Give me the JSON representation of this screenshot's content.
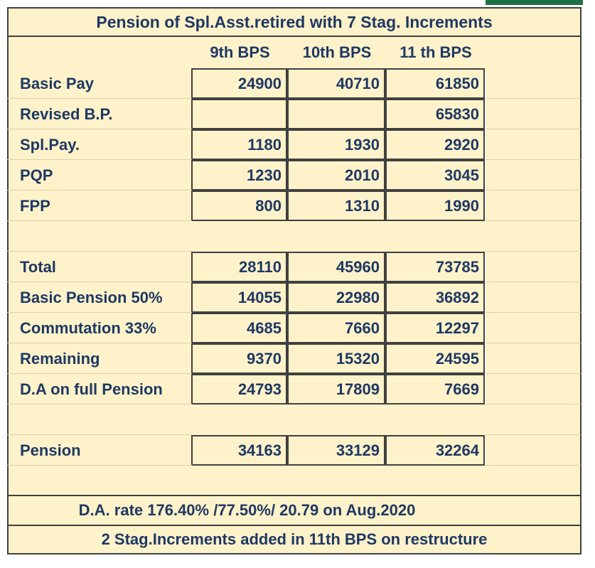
{
  "title": "Pension of Spl.Asst.retired with 7 Stag. Increments",
  "columns": [
    "9th BPS",
    "10th BPS",
    "11 th BPS"
  ],
  "rows": [
    {
      "label": "Basic Pay",
      "values": [
        "24900",
        "40710",
        "61850"
      ]
    },
    {
      "label": "Revised B.P.",
      "values": [
        "",
        "",
        "65830"
      ]
    },
    {
      "label": "Spl.Pay.",
      "values": [
        "1180",
        "1930",
        "2920"
      ]
    },
    {
      "label": "PQP",
      "values": [
        "1230",
        "2010",
        "3045"
      ]
    },
    {
      "label": "FPP",
      "values": [
        "800",
        "1310",
        "1990"
      ]
    },
    {
      "label": "",
      "values": [
        "",
        "",
        ""
      ]
    },
    {
      "label": "Total",
      "values": [
        "28110",
        "45960",
        "73785"
      ]
    },
    {
      "label": "Basic Pension 50%",
      "values": [
        "14055",
        "22980",
        "36892"
      ]
    },
    {
      "label": "Commutation 33%",
      "values": [
        "4685",
        "7660",
        "12297"
      ]
    },
    {
      "label": "Remaining",
      "values": [
        "9370",
        "15320",
        "24595"
      ]
    },
    {
      "label": "D.A on full Pension",
      "values": [
        "24793",
        "17809",
        "7669"
      ]
    },
    {
      "label": "",
      "values": [
        "",
        "",
        ""
      ]
    },
    {
      "label": "Pension",
      "values": [
        "34163",
        "33129",
        "32264"
      ]
    },
    {
      "label": "",
      "values": [
        "",
        "",
        ""
      ]
    }
  ],
  "notes": [
    "D.A. rate 176.40% /77.50%/ 20.79 on Aug.2020",
    "2 Stag.Increments added in 11th BPS on restructure"
  ],
  "colors": {
    "cell_fill": "#fdf2c9",
    "text": "#1f3864",
    "border": "#404040",
    "selection": "#1e7145"
  }
}
